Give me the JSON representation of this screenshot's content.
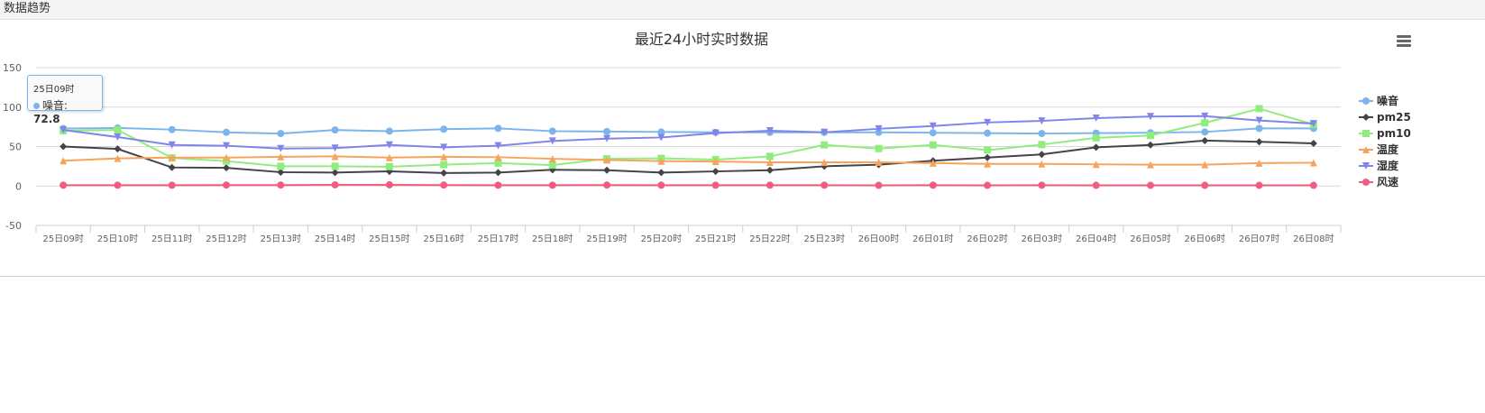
{
  "header": {
    "title": "数据趋势"
  },
  "tooltip": {
    "category": "25日09时",
    "series": "噪音",
    "value": "72.8"
  },
  "chart_data": {
    "type": "line",
    "title": "最近24小时实时数据",
    "xlabel": "",
    "ylabel": "",
    "ylim": [
      -50,
      150
    ],
    "yticks": [
      -50,
      0,
      50,
      100,
      150
    ],
    "grid": true,
    "legend": "right",
    "categories": [
      "25日09时",
      "25日10时",
      "25日11时",
      "25日12时",
      "25日13时",
      "25日14时",
      "25日15时",
      "25日16时",
      "25日17时",
      "25日18时",
      "25日19时",
      "25日20时",
      "25日21时",
      "25日22时",
      "25日23时",
      "26日00时",
      "26日01时",
      "26日02时",
      "26日03时",
      "26日04时",
      "26日05时",
      "26日06时",
      "26日07时",
      "26日08时"
    ],
    "series": [
      {
        "name": "噪音",
        "color": "#7cb5ec",
        "marker": "circle",
        "values": [
          72.8,
          73.5,
          71.5,
          68,
          66.5,
          71,
          69.5,
          72,
          73,
          69.5,
          69,
          68.5,
          68,
          68,
          68,
          68,
          67.5,
          67,
          66.5,
          67,
          67.5,
          68.5,
          73,
          73
        ]
      },
      {
        "name": "pm25",
        "color": "#434348",
        "marker": "diamond",
        "values": [
          50,
          47,
          23.5,
          23,
          17.5,
          17,
          18.5,
          16.5,
          17,
          20.5,
          20,
          17,
          18.5,
          20,
          25,
          27,
          32,
          36,
          40,
          49,
          52,
          57.5,
          56,
          54
        ]
      },
      {
        "name": "pm10",
        "color": "#90ed7d",
        "marker": "square",
        "values": [
          70,
          71,
          35.5,
          31.5,
          25,
          25,
          24.5,
          27,
          29,
          26.5,
          34.5,
          35,
          33.5,
          37.5,
          52,
          47.5,
          52,
          45.5,
          52.5,
          61,
          64,
          80,
          98,
          78
        ]
      },
      {
        "name": "温度",
        "color": "#f7a35c",
        "marker": "triangle",
        "values": [
          32,
          35,
          36,
          36,
          37,
          37.5,
          36,
          37,
          36.5,
          34.5,
          33,
          31.5,
          31,
          30,
          30,
          30,
          29,
          28,
          28,
          27.5,
          27,
          27,
          29,
          29.5
        ]
      },
      {
        "name": "湿度",
        "color": "#8085e9",
        "marker": "triangle-down",
        "values": [
          71,
          62,
          52,
          51,
          47.5,
          48,
          52,
          49,
          51,
          57,
          60,
          61.5,
          67,
          70,
          68,
          72.5,
          76,
          80.5,
          82.5,
          86,
          88,
          88.5,
          83,
          79
        ]
      },
      {
        "name": "风速",
        "color": "#f15c80",
        "marker": "circle",
        "values": [
          1,
          1,
          1,
          1.2,
          1.2,
          1.5,
          1.5,
          1.2,
          1,
          1,
          1.2,
          1,
          1,
          1,
          1,
          0.8,
          1,
          0.8,
          1,
          0.8,
          0.8,
          0.8,
          0.8,
          0.8
        ]
      }
    ]
  }
}
